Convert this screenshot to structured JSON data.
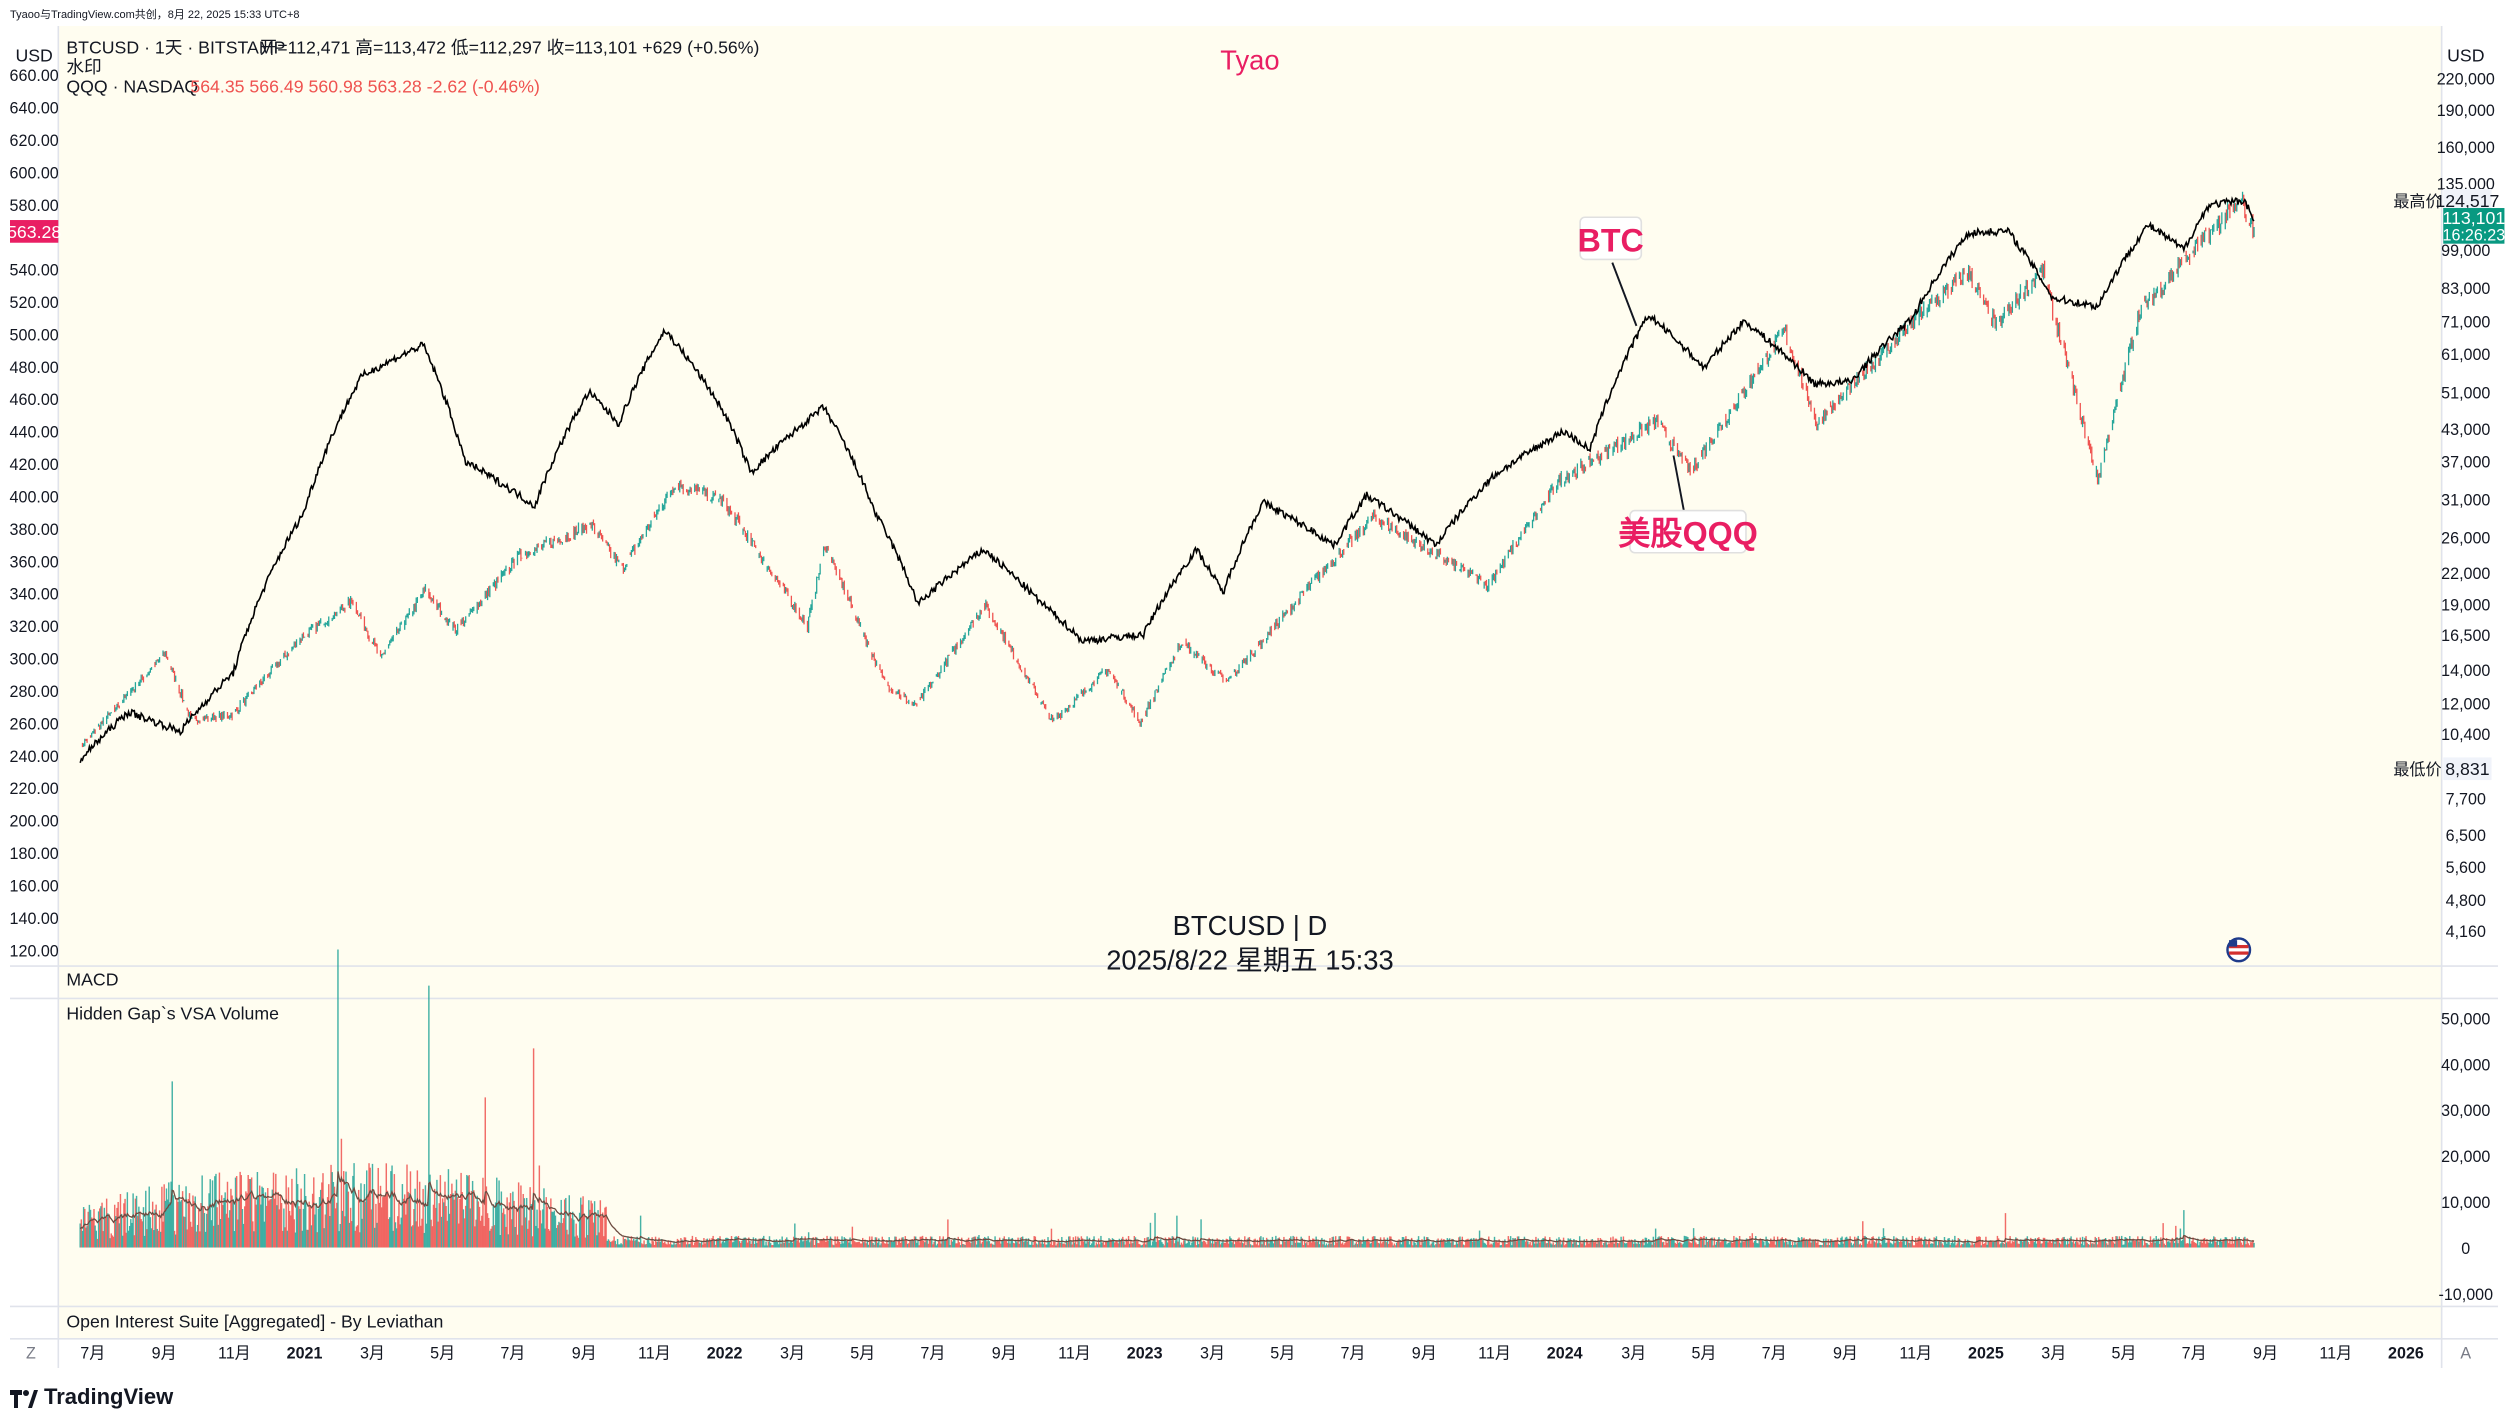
{
  "header": {
    "shared_by": "Tyaoo与TradingView.com共创，8月 22, 2025 15:33 UTC+8"
  },
  "legend": {
    "main_symbol": "BTCUSD · 1天 · BITSTAMP",
    "ohlc": "开=112,471  高=113,472  低=112,297  收=113,101  +629 (+0.56%)",
    "watermark_label": "水印",
    "compare_symbol": "QQQ · NASDAQ",
    "compare_values": "564.35  566.49  560.98  563.28  -2.62 (-0.46%)"
  },
  "author_tag": "Tyao",
  "currency_left": "USD",
  "currency_right": "USD",
  "annotations": {
    "btc_label": "BTC",
    "qqq_label": "美股QQQ"
  },
  "watermark": {
    "line1": "BTCUSD | D",
    "line2": "2025/8/22 星期五 15:33"
  },
  "price_tags": {
    "qqq_last": "563.28",
    "btc_last": "113,101",
    "btc_countdown": "16:26:23",
    "high_label": "最高价",
    "high_value": "124,517",
    "low_label": "最低价",
    "low_value": "8,831"
  },
  "panes": {
    "macd_label": "MACD",
    "volume_label": "Hidden Gap`s VSA Volume",
    "oi_label": "Open Interest Suite [Aggregated] - By Leviathan"
  },
  "bottom_bar": {
    "left_button": "Z",
    "right_button": "A"
  },
  "brand": "TradingView",
  "colors": {
    "plot_bg": "#fffdf0",
    "btc_line": "#000000",
    "qqq_up": "#26a69a",
    "qqq_down": "#ef5350",
    "accent_red": "#e91e63",
    "btc_tag": "#089981",
    "volume_up": "#26a69a",
    "volume_down": "#ef5350",
    "volume_ma": "#6d4c41"
  },
  "chart_data": {
    "type": "line",
    "x_axis_ticks": [
      "7月",
      "9月",
      "11月",
      "2021",
      "3月",
      "5月",
      "7月",
      "9月",
      "11月",
      "2022",
      "3月",
      "5月",
      "7月",
      "9月",
      "11月",
      "2023",
      "3月",
      "5月",
      "7月",
      "9月",
      "11月",
      "2024",
      "3月",
      "5月",
      "7月",
      "9月",
      "11月",
      "2025",
      "3月",
      "5月",
      "7月",
      "9月",
      "11月",
      "2026"
    ],
    "left_axis": {
      "label": "USD",
      "ticks": [
        "660.00",
        "640.00",
        "620.00",
        "600.00",
        "580.00",
        "540.00",
        "520.00",
        "500.00",
        "480.00",
        "460.00",
        "440.00",
        "420.00",
        "400.00",
        "380.00",
        "360.00",
        "340.00",
        "320.00",
        "300.00",
        "280.00",
        "260.00",
        "240.00",
        "220.00",
        "200.00",
        "180.00",
        "160.00",
        "140.00",
        "120.00"
      ],
      "ylim": [
        120,
        680
      ]
    },
    "right_axis": {
      "label": "USD",
      "scale": "log",
      "ticks": [
        "220,000",
        "190,000",
        "160,000",
        "135,000",
        "99,000",
        "83,000",
        "71,000",
        "61,000",
        "51,000",
        "43,000",
        "37,000",
        "31,000",
        "26,000",
        "22,000",
        "19,000",
        "16,500",
        "14,000",
        "12,000",
        "10,400",
        "7,700",
        "6,500",
        "5,600",
        "4,800",
        "4,160"
      ]
    },
    "volume_axis": {
      "ticks": [
        "50,000",
        "40,000",
        "30,000",
        "20,000",
        "10,000",
        "0",
        "-10,000"
      ]
    },
    "series": [
      {
        "name": "BTCUSD",
        "axis": "right",
        "points": [
          [
            "2020-06-20",
            9200
          ],
          [
            "2020-08-01",
            11500
          ],
          [
            "2020-09-15",
            10500
          ],
          [
            "2020-10-31",
            13800
          ],
          [
            "2020-12-31",
            29000
          ],
          [
            "2021-02-20",
            55000
          ],
          [
            "2021-04-14",
            63500
          ],
          [
            "2021-05-20",
            37000
          ],
          [
            "2021-07-20",
            30000
          ],
          [
            "2021-09-05",
            51000
          ],
          [
            "2021-10-01",
            44000
          ],
          [
            "2021-11-10",
            68000
          ],
          [
            "2021-12-31",
            46500
          ],
          [
            "2022-01-24",
            35000
          ],
          [
            "2022-03-28",
            47500
          ],
          [
            "2022-05-12",
            29000
          ],
          [
            "2022-06-18",
            19000
          ],
          [
            "2022-08-14",
            24500
          ],
          [
            "2022-09-30",
            19400
          ],
          [
            "2022-11-08",
            16000
          ],
          [
            "2022-12-31",
            16500
          ],
          [
            "2023-02-15",
            24500
          ],
          [
            "2023-03-10",
            20000
          ],
          [
            "2023-04-14",
            30500
          ],
          [
            "2023-06-15",
            25000
          ],
          [
            "2023-07-13",
            31500
          ],
          [
            "2023-09-11",
            25000
          ],
          [
            "2023-10-31",
            34500
          ],
          [
            "2023-12-31",
            42500
          ],
          [
            "2024-01-23",
            39000
          ],
          [
            "2024-03-14",
            73000
          ],
          [
            "2024-05-01",
            57000
          ],
          [
            "2024-06-05",
            71000
          ],
          [
            "2024-08-05",
            53000
          ],
          [
            "2024-09-06",
            53500
          ],
          [
            "2024-10-29",
            72000
          ],
          [
            "2024-12-17",
            107000
          ],
          [
            "2025-01-20",
            108000
          ],
          [
            "2025-02-28",
            79000
          ],
          [
            "2025-04-08",
            76000
          ],
          [
            "2025-05-22",
            111000
          ],
          [
            "2025-06-22",
            99000
          ],
          [
            "2025-07-14",
            122000
          ],
          [
            "2025-08-14",
            124500
          ],
          [
            "2025-08-22",
            113101
          ]
        ]
      },
      {
        "name": "QQQ",
        "axis": "left",
        "points": [
          [
            "2020-06-20",
            245
          ],
          [
            "2020-09-02",
            303
          ],
          [
            "2020-09-24",
            262
          ],
          [
            "2020-10-30",
            265
          ],
          [
            "2020-12-31",
            314
          ],
          [
            "2021-02-12",
            335
          ],
          [
            "2021-03-08",
            300
          ],
          [
            "2021-04-16",
            342
          ],
          [
            "2021-05-12",
            317
          ],
          [
            "2021-07-07",
            363
          ],
          [
            "2021-09-07",
            382
          ],
          [
            "2021-10-04",
            355
          ],
          [
            "2021-11-19",
            408
          ],
          [
            "2021-12-31",
            397
          ],
          [
            "2022-03-14",
            320
          ],
          [
            "2022-03-29",
            370
          ],
          [
            "2022-05-20",
            285
          ],
          [
            "2022-06-16",
            270
          ],
          [
            "2022-08-15",
            333
          ],
          [
            "2022-10-13",
            261
          ],
          [
            "2022-11-30",
            293
          ],
          [
            "2022-12-28",
            260
          ],
          [
            "2023-02-02",
            310
          ],
          [
            "2023-03-13",
            285
          ],
          [
            "2023-05-31",
            350
          ],
          [
            "2023-07-19",
            387
          ],
          [
            "2023-10-26",
            345
          ],
          [
            "2023-12-28",
            410
          ],
          [
            "2024-03-21",
            446
          ],
          [
            "2024-04-19",
            415
          ],
          [
            "2024-07-10",
            502
          ],
          [
            "2024-08-07",
            445
          ],
          [
            "2024-11-08",
            514
          ],
          [
            "2024-12-16",
            538
          ],
          [
            "2025-01-10",
            505
          ],
          [
            "2025-02-19",
            540
          ],
          [
            "2025-04-08",
            410
          ],
          [
            "2025-05-15",
            515
          ],
          [
            "2025-07-28",
            573
          ],
          [
            "2025-08-12",
            580
          ],
          [
            "2025-08-22",
            563.28
          ]
        ]
      }
    ],
    "grid": false,
    "legend_position": "top-left"
  }
}
